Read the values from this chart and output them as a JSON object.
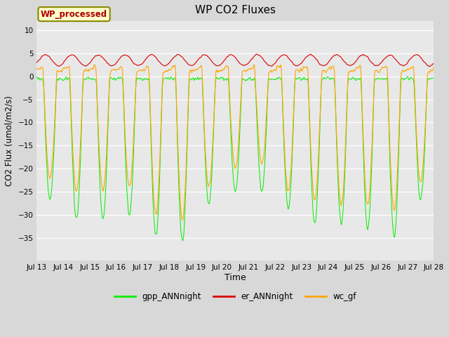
{
  "title": "WP CO2 Fluxes",
  "xlabel": "Time",
  "ylabel": "CO2 Flux (umol/m2/s)",
  "ylim": [
    -40,
    12
  ],
  "yticks": [
    -35,
    -30,
    -25,
    -20,
    -15,
    -10,
    -5,
    0,
    5,
    10
  ],
  "bg_color": "#e8e8e8",
  "fig_color": "#d8d8d8",
  "plot_bg": "#e8e8e8",
  "gpp_color": "#00ee00",
  "er_color": "#dd0000",
  "wc_color": "#ffa500",
  "annotation_text": "WP_processed",
  "annotation_bg": "#ffffcc",
  "annotation_fg": "#aa0000",
  "legend_labels": [
    "gpp_ANNnight",
    "er_ANNnight",
    "wc_gf"
  ],
  "legend_colors": [
    "#00ee00",
    "#dd0000",
    "#ffa500"
  ],
  "n_days": 15,
  "points_per_day": 96,
  "start_day": 13
}
